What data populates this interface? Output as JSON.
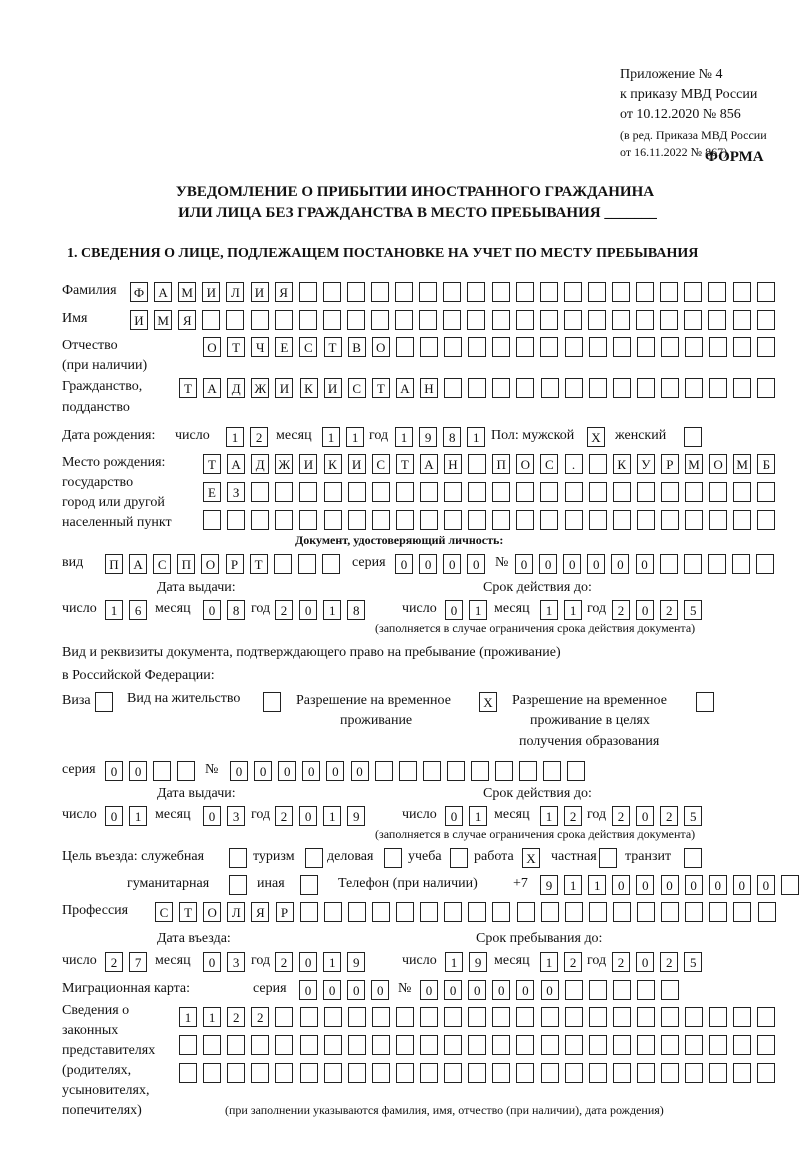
{
  "header": {
    "line1": "Приложение № 4",
    "line2": "к приказу МВД России",
    "line3": "от 10.12.2020 № 856",
    "line4": "(в ред. Приказа МВД России",
    "line5": "от 16.11.2022 № 867)",
    "form": "ФОРМА"
  },
  "title": {
    "line1": "УВЕДОМЛЕНИЕ О ПРИБЫТИИ ИНОСТРАННОГО ГРАЖДАНИНА",
    "line2": "ИЛИ ЛИЦА БЕЗ ГРАЖДАНСТВА В МЕСТО ПРЕБЫВАНИЯ _______"
  },
  "section1": "1. СВЕДЕНИЯ О ЛИЦЕ, ПОДЛЕЖАЩЕМ ПОСТАНОВКЕ НА УЧЕТ ПО МЕСТУ ПРЕБЫВАНИЯ",
  "labels": {
    "surname": "Фамилия",
    "name": "Имя",
    "patronymic1": "Отчество",
    "patronymic2": "(при наличии)",
    "citizenship1": "Гражданство,",
    "citizenship2": "подданство",
    "birth_date": "Дата рождения:",
    "day": "число",
    "month": "месяц",
    "year": "год",
    "sex": "Пол: мужской",
    "female": "женский",
    "birthplace1": "Место рождения:",
    "birthplace2": "государство",
    "birthplace3": "город или другой",
    "birthplace4": "населенный пункт",
    "id_doc": "Документ, удостоверяющий личность:",
    "kind": "вид",
    "series": "серия",
    "number": "№",
    "issue_date": "Дата выдачи:",
    "valid_until": "Срок действия до:",
    "valid_note": "(заполняется в случае ограничения срока действия документа)",
    "right_doc1": "Вид и реквизиты документа, подтверждающего право на пребывание (проживание)",
    "right_doc2": "в Российской Федерации:",
    "visa": "Виза",
    "residence": "Вид на жительство",
    "trp1": "Разрешение на временное",
    "trp2": "проживание",
    "trpe1": "Разрешение на временное",
    "trpe2": "проживание в целях",
    "trpe3": "получения образования",
    "purpose": "Цель въезда: служебная",
    "tourism": "туризм",
    "business": "деловая",
    "study": "учеба",
    "work": "работа",
    "private": "частная",
    "transit": "транзит",
    "humanitarian": "гуманитарная",
    "other": "иная",
    "phone": "Телефон (при наличии)",
    "phone_prefix": "+7",
    "profession": "Профессия",
    "entry_date": "Дата въезда:",
    "stay_until": "Срок пребывания до:",
    "migration_card": "Миграционная карта:",
    "reps1": "Сведения о",
    "reps2": "законных",
    "reps3": "представителях",
    "reps4": "(родителях,",
    "reps5": "усыновителях,",
    "reps6": "попечителях)",
    "reps_note": "(при заполнении указываются фамилия, имя, отчество (при наличии), дата рождения)"
  },
  "fields": {
    "surname": "ФАМИЛИЯ",
    "name": "ИМЯ",
    "patronymic": "ОТЧЕСТВО",
    "citizenship": "ТАДЖИКИСТАН",
    "birth_day": "12",
    "birth_month": "11",
    "birth_year": "1981",
    "sex_male": "X",
    "sex_female": "",
    "birthplace1": "ТАДЖИКИСТАН ПОС. КУРМОМБ",
    "birthplace2": "ЕЗ",
    "birthplace3": "",
    "doc_kind": "ПАСПОРТ",
    "doc_series": "0000",
    "doc_number": "000000",
    "doc_issue_day": "16",
    "doc_issue_month": "08",
    "doc_issue_year": "2018",
    "doc_valid_day": "01",
    "doc_valid_month": "11",
    "doc_valid_year": "2025",
    "visa": "",
    "residence": "",
    "trp": "X",
    "trpe": "",
    "right_series": "00",
    "right_number": "000000",
    "right_issue_day": "01",
    "right_issue_month": "03",
    "right_issue_year": "2019",
    "right_valid_day": "01",
    "right_valid_month": "12",
    "right_valid_year": "2025",
    "p_service": "",
    "p_tourism": "",
    "p_business": "",
    "p_study": "",
    "p_work": "X",
    "p_private": "",
    "p_transit": "",
    "p_humanitarian": "",
    "p_other": "",
    "phone": "9110000000",
    "profession": "СТОЛЯР",
    "entry_day": "27",
    "entry_month": "03",
    "entry_year": "2019",
    "stay_day": "19",
    "stay_month": "12",
    "stay_year": "2025",
    "mc_series": "0000",
    "mc_number": "000000",
    "reps1": "1122",
    "reps2": "",
    "reps3": ""
  }
}
